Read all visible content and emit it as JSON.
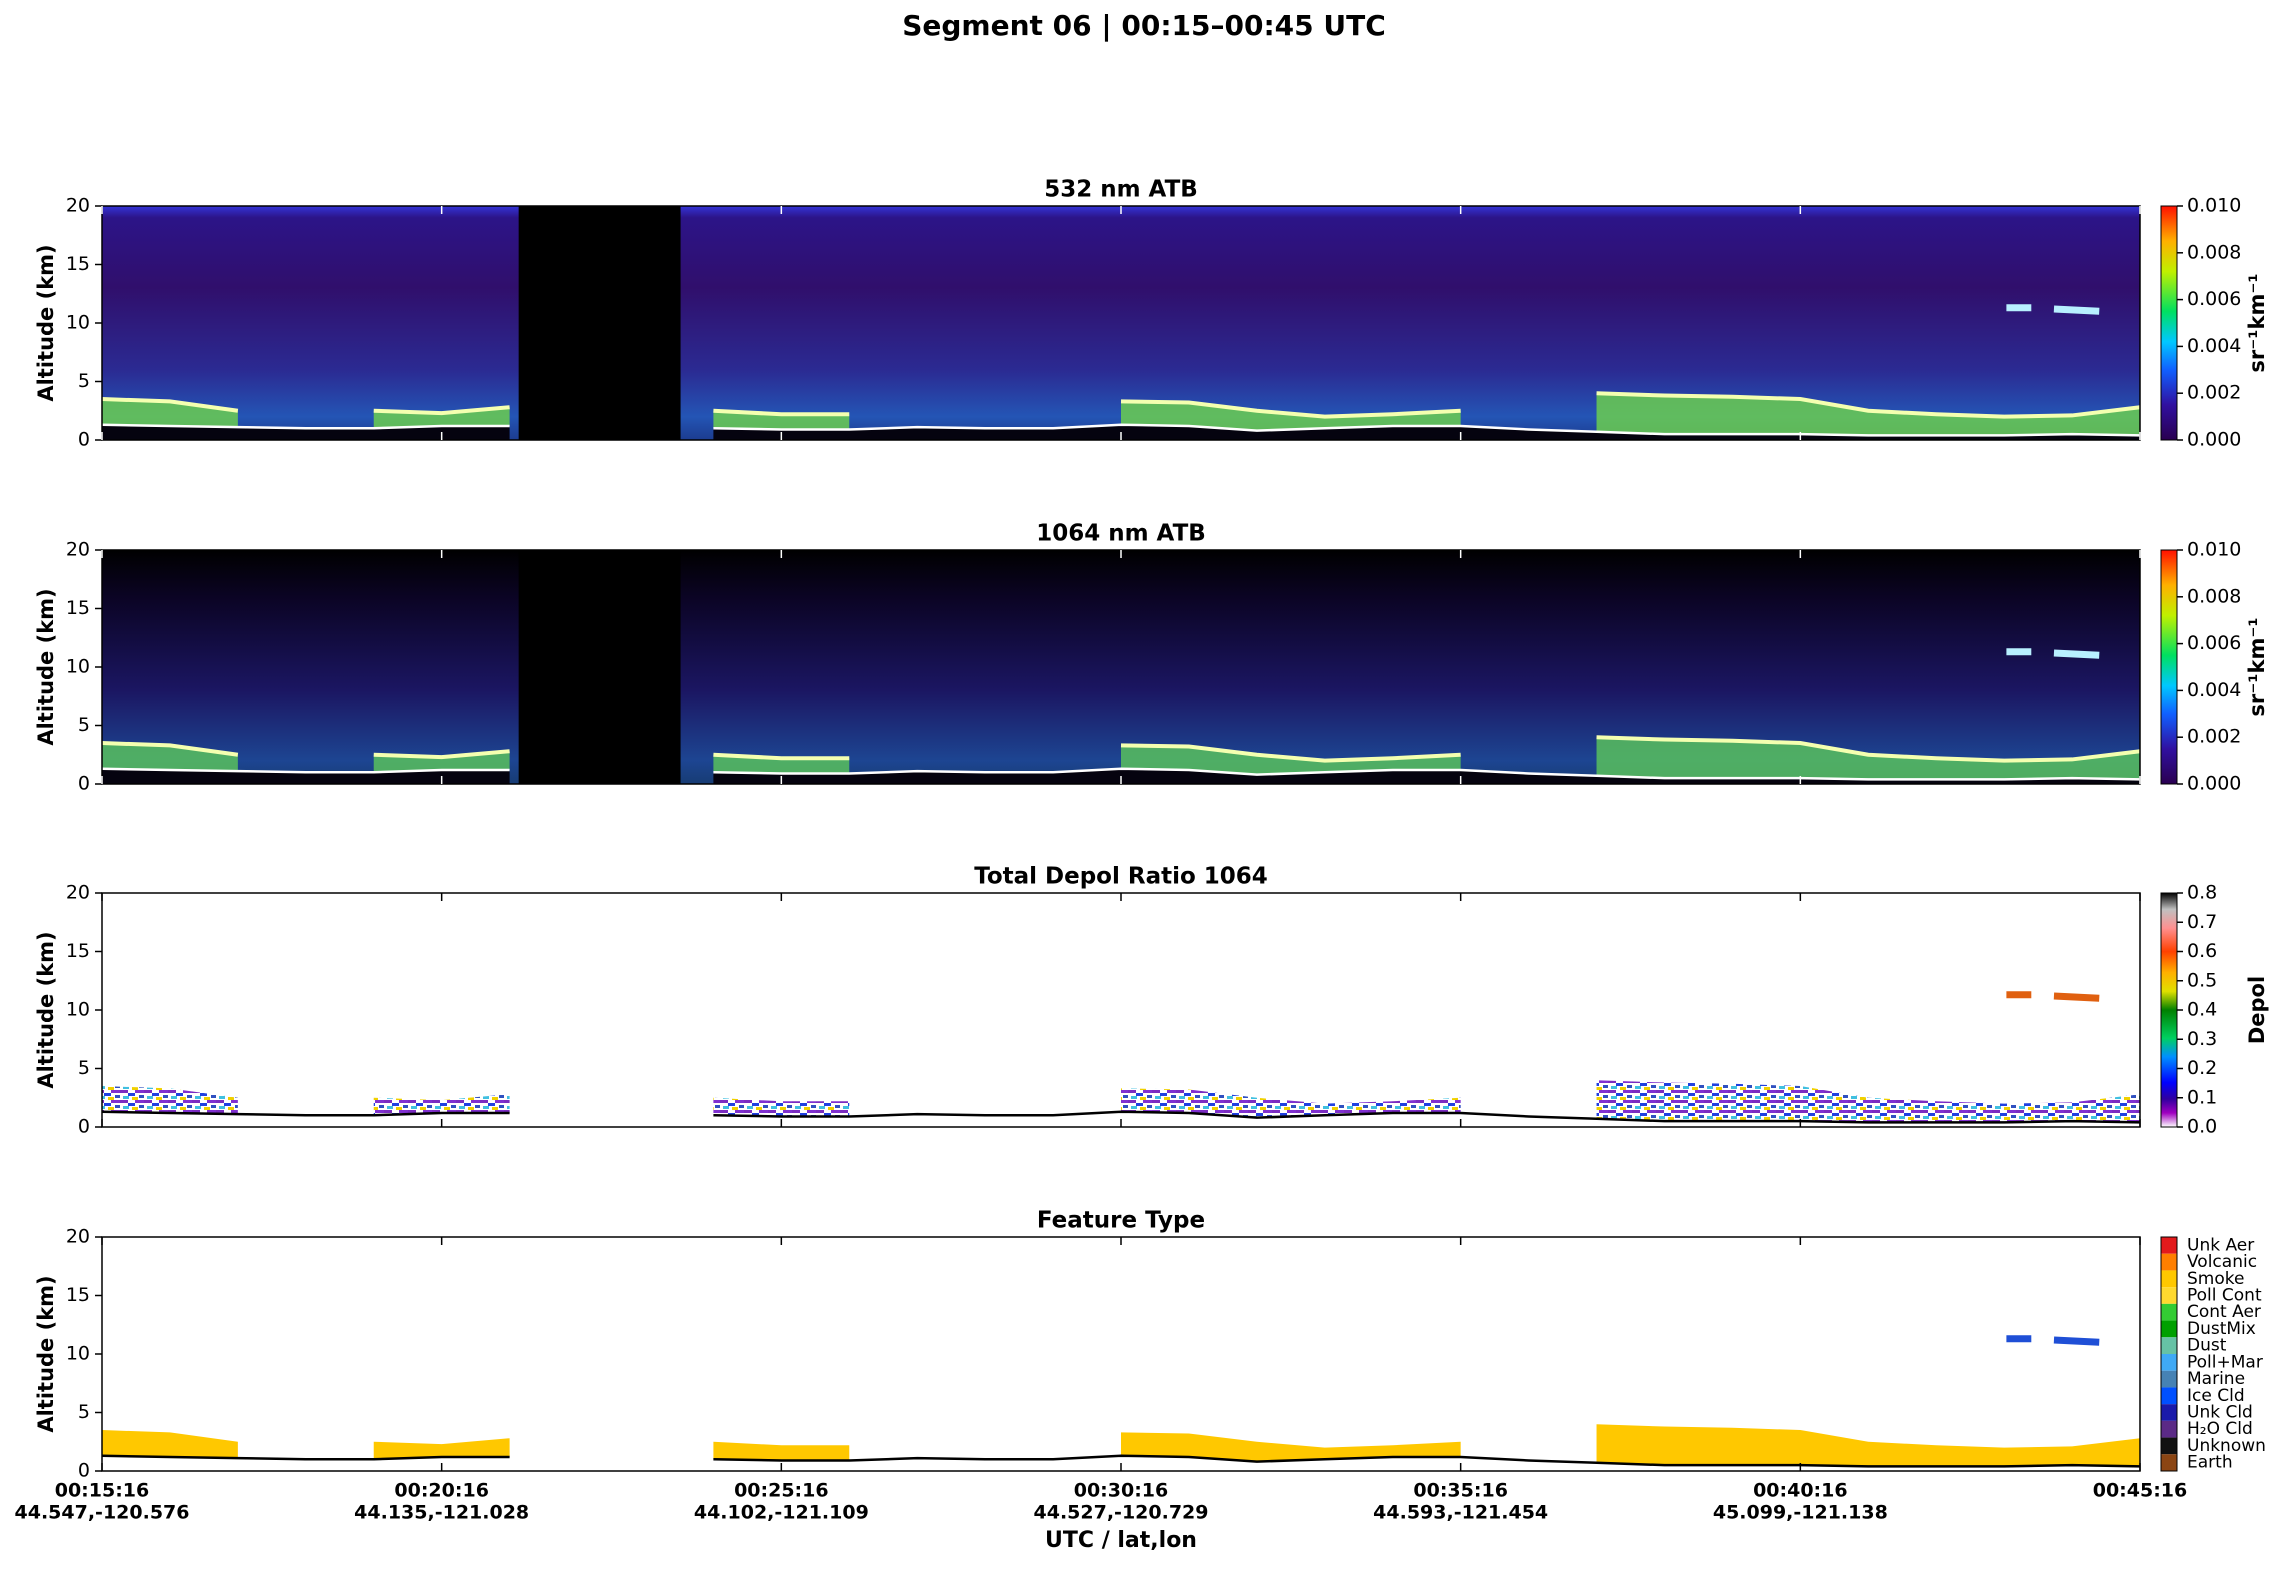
{
  "title": "Segment 06  |  00:15–00:45 UTC",
  "chart_data": [
    {
      "type": "atb",
      "title": "532 nm ATB",
      "ylabel": "Altitude (km)",
      "xlim": [
        "00:15:16",
        "00:45:16"
      ],
      "ylim": [
        0,
        20
      ],
      "yticks": [
        0,
        5,
        10,
        15,
        20
      ],
      "x": [
        "00:15:16",
        "00:16:16",
        "00:17:16",
        "00:18:16",
        "00:19:16",
        "00:20:16",
        "00:21:16",
        "00:22:16",
        "00:23:16",
        "00:24:16",
        "00:25:16",
        "00:26:16",
        "00:27:16",
        "00:28:16",
        "00:29:16",
        "00:30:16",
        "00:31:16",
        "00:32:16",
        "00:33:16",
        "00:34:16",
        "00:35:16",
        "00:36:16",
        "00:37:16",
        "00:38:16",
        "00:39:16",
        "00:40:16",
        "00:41:16",
        "00:42:16",
        "00:43:16",
        "00:44:16",
        "00:45:16"
      ],
      "surface": [
        1.3,
        1.2,
        1.1,
        1.0,
        1.0,
        1.2,
        1.2,
        null,
        null,
        1.0,
        0.9,
        0.9,
        1.1,
        1.0,
        1.0,
        1.3,
        1.2,
        0.8,
        1.0,
        1.2,
        1.2,
        0.9,
        0.7,
        0.5,
        0.5,
        0.5,
        0.4,
        0.4,
        0.4,
        0.5,
        0.4
      ],
      "layer_top": [
        3.5,
        3.3,
        2.5,
        null,
        2.5,
        2.3,
        2.8,
        null,
        null,
        2.5,
        2.2,
        2.2,
        null,
        null,
        null,
        3.3,
        3.2,
        2.5,
        2.0,
        2.2,
        2.5,
        null,
        4.0,
        3.8,
        3.7,
        3.5,
        2.5,
        2.2,
        2.0,
        2.1,
        2.8
      ],
      "no_data": [
        "00:21:24",
        "00:23:47"
      ],
      "cirrus": {
        "x": [
          "00:43:18",
          "00:43:40",
          "00:43:50",
          "00:44:00",
          "00:44:40"
        ],
        "values": [
          11.3,
          11.3,
          null,
          11.2,
          11.0
        ]
      },
      "layer_color": "#6fd64a",
      "cirrus_color": "#b8f0ff",
      "colorbar": {
        "label": "sr⁻¹km⁻¹",
        "lim": [
          0,
          0.01
        ],
        "ticks": [
          {
            "value": 0,
            "label": "0.000"
          },
          {
            "value": 0.002,
            "label": "0.002"
          },
          {
            "value": 0.004,
            "label": "0.004"
          },
          {
            "value": 0.006,
            "label": "0.006"
          },
          {
            "value": 0.008,
            "label": "0.008"
          },
          {
            "value": 0.01,
            "label": "0.010"
          }
        ]
      }
    },
    {
      "type": "atb",
      "title": "1064 nm ATB",
      "ylabel": "Altitude (km)",
      "xlim": [
        "00:15:16",
        "00:45:16"
      ],
      "ylim": [
        0,
        20
      ],
      "yticks": [
        0,
        5,
        10,
        15,
        20
      ],
      "x": [
        "00:15:16",
        "00:16:16",
        "00:17:16",
        "00:18:16",
        "00:19:16",
        "00:20:16",
        "00:21:16",
        "00:22:16",
        "00:23:16",
        "00:24:16",
        "00:25:16",
        "00:26:16",
        "00:27:16",
        "00:28:16",
        "00:29:16",
        "00:30:16",
        "00:31:16",
        "00:32:16",
        "00:33:16",
        "00:34:16",
        "00:35:16",
        "00:36:16",
        "00:37:16",
        "00:38:16",
        "00:39:16",
        "00:40:16",
        "00:41:16",
        "00:42:16",
        "00:43:16",
        "00:44:16",
        "00:45:16"
      ],
      "surface": [
        1.3,
        1.2,
        1.1,
        1.0,
        1.0,
        1.2,
        1.2,
        null,
        null,
        1.0,
        0.9,
        0.9,
        1.1,
        1.0,
        1.0,
        1.3,
        1.2,
        0.8,
        1.0,
        1.2,
        1.2,
        0.9,
        0.7,
        0.5,
        0.5,
        0.5,
        0.4,
        0.4,
        0.4,
        0.5,
        0.4
      ],
      "layer_top": [
        3.5,
        3.3,
        2.5,
        null,
        2.5,
        2.3,
        2.8,
        null,
        null,
        2.5,
        2.2,
        2.2,
        null,
        null,
        null,
        3.3,
        3.2,
        2.5,
        2.0,
        2.2,
        2.5,
        null,
        4.0,
        3.8,
        3.7,
        3.5,
        2.5,
        2.2,
        2.0,
        2.1,
        2.8
      ],
      "no_data": [
        "00:21:24",
        "00:23:47"
      ],
      "cirrus": {
        "x": [
          "00:43:18",
          "00:43:40",
          "00:43:50",
          "00:44:00",
          "00:44:40"
        ],
        "values": [
          11.3,
          11.3,
          null,
          11.2,
          11.0
        ]
      },
      "layer_color": "#5cc85a",
      "cirrus_color": "#b8f0ff",
      "colorbar": {
        "label": "sr⁻¹km⁻¹",
        "lim": [
          0,
          0.01
        ],
        "ticks": [
          {
            "value": 0,
            "label": "0.000"
          },
          {
            "value": 0.002,
            "label": "0.002"
          },
          {
            "value": 0.004,
            "label": "0.004"
          },
          {
            "value": 0.006,
            "label": "0.006"
          },
          {
            "value": 0.008,
            "label": "0.008"
          },
          {
            "value": 0.01,
            "label": "0.010"
          }
        ]
      }
    },
    {
      "type": "depol",
      "title": "Total Depol Ratio 1064",
      "ylabel": "Altitude (km)",
      "xlim": [
        "00:15:16",
        "00:45:16"
      ],
      "ylim": [
        0,
        20
      ],
      "yticks": [
        0,
        5,
        10,
        15,
        20
      ],
      "x": [
        "00:15:16",
        "00:16:16",
        "00:17:16",
        "00:18:16",
        "00:19:16",
        "00:20:16",
        "00:21:16",
        "00:22:16",
        "00:23:16",
        "00:24:16",
        "00:25:16",
        "00:26:16",
        "00:27:16",
        "00:28:16",
        "00:29:16",
        "00:30:16",
        "00:31:16",
        "00:32:16",
        "00:33:16",
        "00:34:16",
        "00:35:16",
        "00:36:16",
        "00:37:16",
        "00:38:16",
        "00:39:16",
        "00:40:16",
        "00:41:16",
        "00:42:16",
        "00:43:16",
        "00:44:16",
        "00:45:16"
      ],
      "surface": [
        1.3,
        1.2,
        1.1,
        1.0,
        1.0,
        1.2,
        1.2,
        null,
        null,
        1.0,
        0.9,
        0.9,
        1.1,
        1.0,
        1.0,
        1.3,
        1.2,
        0.8,
        1.0,
        1.2,
        1.2,
        0.9,
        0.7,
        0.5,
        0.5,
        0.5,
        0.4,
        0.4,
        0.4,
        0.5,
        0.4
      ],
      "layer_top": [
        3.5,
        3.3,
        2.5,
        null,
        2.5,
        2.3,
        2.8,
        null,
        null,
        2.5,
        2.2,
        2.2,
        null,
        null,
        null,
        3.3,
        3.2,
        2.5,
        2.0,
        2.2,
        2.5,
        null,
        4.0,
        3.8,
        3.7,
        3.5,
        2.5,
        2.2,
        2.0,
        2.1,
        2.8
      ],
      "cirrus": {
        "x": [
          "00:43:18",
          "00:43:40",
          "00:43:50",
          "00:44:00",
          "00:44:40"
        ],
        "values": [
          11.3,
          11.3,
          null,
          11.2,
          11.0
        ]
      },
      "cirrus_color": "#e06010",
      "colorbar": {
        "label": "Depol",
        "lim": [
          0,
          0.8
        ],
        "ticks": [
          {
            "value": 0,
            "label": "0.0"
          },
          {
            "value": 0.1,
            "label": "0.1"
          },
          {
            "value": 0.2,
            "label": "0.2"
          },
          {
            "value": 0.3,
            "label": "0.3"
          },
          {
            "value": 0.4,
            "label": "0.4"
          },
          {
            "value": 0.5,
            "label": "0.5"
          },
          {
            "value": 0.6,
            "label": "0.6"
          },
          {
            "value": 0.7,
            "label": "0.7"
          },
          {
            "value": 0.8,
            "label": "0.8"
          }
        ]
      }
    },
    {
      "type": "feature",
      "title": "Feature Type",
      "ylabel": "Altitude (km)",
      "xlabel": "UTC / lat,lon",
      "xlim": [
        "00:15:16",
        "00:45:16"
      ],
      "ylim": [
        0,
        20
      ],
      "yticks": [
        0,
        5,
        10,
        15,
        20
      ],
      "xticks": [
        {
          "time": "00:15:16",
          "latlon": "44.547,-120.576"
        },
        {
          "time": "00:20:16",
          "latlon": "44.135,-121.028"
        },
        {
          "time": "00:25:16",
          "latlon": "44.102,-121.109"
        },
        {
          "time": "00:30:16",
          "latlon": "44.527,-120.729"
        },
        {
          "time": "00:35:16",
          "latlon": "44.593,-121.454"
        },
        {
          "time": "00:40:16",
          "latlon": "45.099,-121.138"
        },
        {
          "time": "00:45:16",
          "latlon": ""
        }
      ],
      "x": [
        "00:15:16",
        "00:16:16",
        "00:17:16",
        "00:18:16",
        "00:19:16",
        "00:20:16",
        "00:21:16",
        "00:22:16",
        "00:23:16",
        "00:24:16",
        "00:25:16",
        "00:26:16",
        "00:27:16",
        "00:28:16",
        "00:29:16",
        "00:30:16",
        "00:31:16",
        "00:32:16",
        "00:33:16",
        "00:34:16",
        "00:35:16",
        "00:36:16",
        "00:37:16",
        "00:38:16",
        "00:39:16",
        "00:40:16",
        "00:41:16",
        "00:42:16",
        "00:43:16",
        "00:44:16",
        "00:45:16"
      ],
      "surface": [
        1.3,
        1.2,
        1.1,
        1.0,
        1.0,
        1.2,
        1.2,
        null,
        null,
        1.0,
        0.9,
        0.9,
        1.1,
        1.0,
        1.0,
        1.3,
        1.2,
        0.8,
        1.0,
        1.2,
        1.2,
        0.9,
        0.7,
        0.5,
        0.5,
        0.5,
        0.4,
        0.4,
        0.4,
        0.5,
        0.4
      ],
      "layer_top": [
        3.5,
        3.3,
        2.5,
        null,
        2.5,
        2.3,
        2.8,
        null,
        null,
        2.5,
        2.2,
        2.2,
        null,
        null,
        null,
        3.3,
        3.2,
        2.5,
        2.0,
        2.2,
        2.5,
        null,
        4.0,
        3.8,
        3.7,
        3.5,
        2.5,
        2.2,
        2.0,
        2.1,
        2.8
      ],
      "cirrus": {
        "x": [
          "00:43:18",
          "00:43:40",
          "00:43:50",
          "00:44:00",
          "00:44:40"
        ],
        "values": [
          11.3,
          11.3,
          null,
          11.2,
          11.0
        ]
      },
      "layer_color": "#ffc800",
      "cirrus_color": "#1f4fd6",
      "classes": [
        {
          "name": "Unk Aer",
          "color": "#e31a1c"
        },
        {
          "name": "Volcanic",
          "color": "#ff7f00"
        },
        {
          "name": "Smoke",
          "color": "#ffc800"
        },
        {
          "name": "Poll Cont",
          "color": "#ffd92f"
        },
        {
          "name": "Cont Aer",
          "color": "#33cc33"
        },
        {
          "name": "DustMix",
          "color": "#00a000"
        },
        {
          "name": "Dust",
          "color": "#66c2a5"
        },
        {
          "name": "Poll+Mar",
          "color": "#3fa9f5"
        },
        {
          "name": "Marine",
          "color": "#4682b4"
        },
        {
          "name": "Ice Cld",
          "color": "#0050ff"
        },
        {
          "name": "Unk Cld",
          "color": "#1a1aaa"
        },
        {
          "name": "H₂O Cld",
          "color": "#5b2a86"
        },
        {
          "name": "Unknown",
          "color": "#111111"
        },
        {
          "name": "Earth",
          "color": "#8b4513"
        }
      ]
    }
  ]
}
